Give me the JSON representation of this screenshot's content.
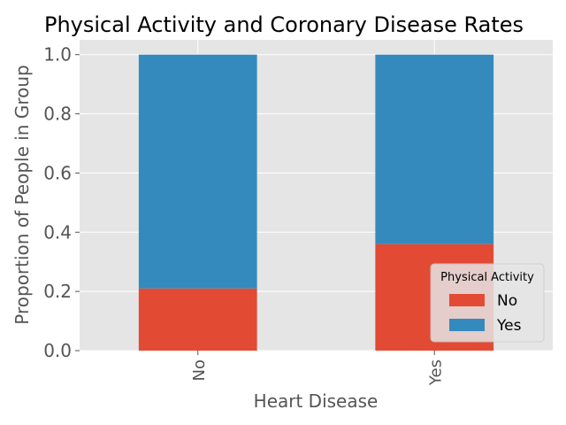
{
  "chart_data": {
    "type": "bar",
    "stacked": true,
    "title": "Physical Activity and Coronary Disease Rates",
    "xlabel": "Heart Disease",
    "ylabel": "Proportion of People in Group",
    "categories": [
      "No",
      "Yes"
    ],
    "series": [
      {
        "name": "No",
        "color": "#E24A33",
        "values": [
          0.21,
          0.36
        ]
      },
      {
        "name": "Yes",
        "color": "#348ABD",
        "values": [
          0.79,
          0.64
        ]
      }
    ],
    "ylim": [
      0,
      1.05
    ],
    "yticks": [
      "0.0",
      "0.2",
      "0.4",
      "0.6",
      "0.8",
      "1.0"
    ],
    "grid": true,
    "legend": {
      "title": "Physical Activity",
      "placement": "lower right"
    }
  }
}
